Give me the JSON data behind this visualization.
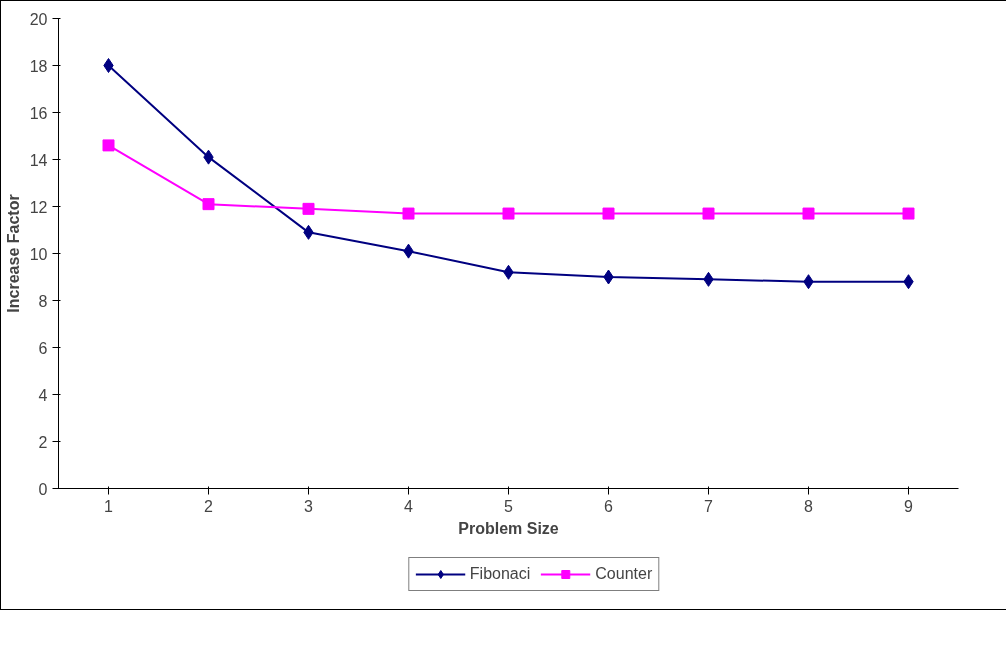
{
  "chart_data": {
    "type": "line",
    "xlabel": "Problem Size",
    "ylabel": "Increase Factor",
    "categories": [
      "1",
      "2",
      "3",
      "4",
      "5",
      "6",
      "7",
      "8",
      "9"
    ],
    "series": [
      {
        "name": "Fibonaci",
        "color": "#000080",
        "marker": "diamond",
        "values": [
          18.0,
          14.1,
          10.9,
          10.1,
          9.2,
          9.0,
          8.9,
          8.8,
          8.8
        ]
      },
      {
        "name": "Counter",
        "color": "#ff00ff",
        "marker": "square",
        "values": [
          14.6,
          12.1,
          11.9,
          11.7,
          11.7,
          11.7,
          11.7,
          11.7,
          11.7
        ]
      }
    ],
    "ylim": [
      0,
      20
    ],
    "yticks": [
      0,
      2,
      4,
      6,
      8,
      10,
      12,
      14,
      16,
      18,
      20
    ],
    "grid": false,
    "legend": "bottom",
    "line_style": "solid"
  }
}
